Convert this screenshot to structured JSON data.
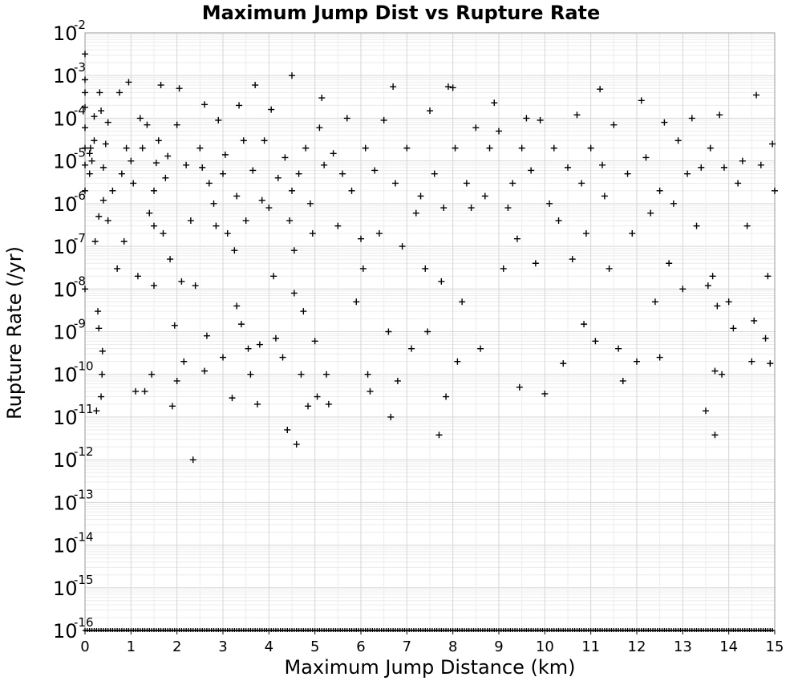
{
  "chart_data": {
    "type": "scatter",
    "title": "Maximum Jump Dist vs Rupture Rate",
    "xlabel": "Maximum Jump Distance (km)",
    "ylabel": "Rupture Rate (/yr)",
    "xlim": [
      0,
      15
    ],
    "ylim": [
      1e-16,
      0.01
    ],
    "yscale": "log",
    "grid": true,
    "marker": "plus",
    "marker_color": "#000000",
    "grid_color": "#dddddd",
    "x_ticks": [
      "0",
      "1",
      "2",
      "3",
      "4",
      "5",
      "6",
      "7",
      "8",
      "9",
      "10",
      "11",
      "12",
      "13",
      "14",
      "15"
    ],
    "y_ticks": [
      {
        "base": "10",
        "exp": "-2"
      },
      {
        "base": "10",
        "exp": "-3"
      },
      {
        "base": "10",
        "exp": "-4"
      },
      {
        "base": "10",
        "exp": "-5"
      },
      {
        "base": "10",
        "exp": "-6"
      },
      {
        "base": "10",
        "exp": "-7"
      },
      {
        "base": "10",
        "exp": "-8"
      },
      {
        "base": "10",
        "exp": "-9"
      },
      {
        "base": "10",
        "exp": "-10"
      },
      {
        "base": "10",
        "exp": "-11"
      },
      {
        "base": "10",
        "exp": "-12"
      },
      {
        "base": "10",
        "exp": "-13"
      },
      {
        "base": "10",
        "exp": "-14"
      },
      {
        "base": "10",
        "exp": "-15"
      },
      {
        "base": "10",
        "exp": "-16"
      }
    ],
    "points": [
      [
        0.0,
        0.0032
      ],
      [
        0.0,
        0.0008
      ],
      [
        0.0,
        0.0004
      ],
      [
        0.0,
        0.00018
      ],
      [
        0.0,
        6e-05
      ],
      [
        0.0,
        2e-05
      ],
      [
        0.0,
        8e-06
      ],
      [
        0.0,
        2e-06
      ],
      [
        0.0,
        1e-08
      ],
      [
        0.1,
        1.5e-05
      ],
      [
        0.1,
        5e-06
      ],
      [
        0.12,
        2e-05
      ],
      [
        0.15,
        1e-05
      ],
      [
        0.2,
        3e-05
      ],
      [
        0.2,
        0.00011
      ],
      [
        0.22,
        1.3e-07
      ],
      [
        0.25,
        1.4e-11
      ],
      [
        0.28,
        3e-09
      ],
      [
        0.3,
        1.2e-09
      ],
      [
        0.3,
        5e-07
      ],
      [
        0.32,
        0.0004
      ],
      [
        0.35,
        0.00015
      ],
      [
        0.35,
        3e-11
      ],
      [
        0.37,
        1e-10
      ],
      [
        0.38,
        3.5e-10
      ],
      [
        0.4,
        7e-06
      ],
      [
        0.4,
        1.2e-06
      ],
      [
        0.45,
        2.5e-05
      ],
      [
        0.5,
        8e-05
      ],
      [
        0.5,
        4e-07
      ],
      [
        0.6,
        2e-06
      ],
      [
        0.7,
        3e-08
      ],
      [
        0.75,
        0.0004
      ],
      [
        0.8,
        5e-06
      ],
      [
        0.85,
        1.3e-07
      ],
      [
        0.9,
        2e-05
      ],
      [
        0.95,
        0.0007
      ],
      [
        1.0,
        1e-05
      ],
      [
        1.05,
        3e-06
      ],
      [
        1.1,
        4e-11
      ],
      [
        1.15,
        2e-08
      ],
      [
        1.2,
        0.0001
      ],
      [
        1.25,
        2e-05
      ],
      [
        1.3,
        4e-11
      ],
      [
        1.35,
        7e-05
      ],
      [
        1.4,
        6e-07
      ],
      [
        1.45,
        1e-10
      ],
      [
        1.5,
        3e-07
      ],
      [
        1.5,
        1.2e-08
      ],
      [
        1.5,
        2e-06
      ],
      [
        1.55,
        9e-06
      ],
      [
        1.6,
        3e-05
      ],
      [
        1.65,
        0.0006
      ],
      [
        1.7,
        2e-07
      ],
      [
        1.75,
        4e-06
      ],
      [
        1.8,
        1.3e-05
      ],
      [
        1.85,
        5e-08
      ],
      [
        1.9,
        1.8e-11
      ],
      [
        1.95,
        1.4e-09
      ],
      [
        2.0,
        7e-05
      ],
      [
        2.0,
        7e-11
      ],
      [
        2.05,
        0.0005
      ],
      [
        2.1,
        1.5e-08
      ],
      [
        2.15,
        2e-10
      ],
      [
        2.2,
        8e-06
      ],
      [
        2.3,
        4e-07
      ],
      [
        2.35,
        1e-12
      ],
      [
        2.4,
        1.2e-08
      ],
      [
        2.5,
        2e-05
      ],
      [
        2.55,
        7e-06
      ],
      [
        2.6,
        0.00021
      ],
      [
        2.6,
        1.2e-10
      ],
      [
        2.65,
        8e-10
      ],
      [
        2.7,
        3e-06
      ],
      [
        2.8,
        1e-06
      ],
      [
        2.85,
        3e-07
      ],
      [
        2.9,
        9e-05
      ],
      [
        3.0,
        2.5e-10
      ],
      [
        3.0,
        5e-06
      ],
      [
        3.05,
        1.4e-05
      ],
      [
        3.1,
        2e-07
      ],
      [
        3.2,
        2.8e-11
      ],
      [
        3.25,
        8e-08
      ],
      [
        3.3,
        4e-09
      ],
      [
        3.3,
        1.5e-06
      ],
      [
        3.35,
        0.0002
      ],
      [
        3.4,
        1.5e-09
      ],
      [
        3.45,
        3e-05
      ],
      [
        3.5,
        4e-07
      ],
      [
        3.55,
        4e-10
      ],
      [
        3.6,
        1e-10
      ],
      [
        3.65,
        6e-06
      ],
      [
        3.7,
        0.0006
      ],
      [
        3.75,
        2e-11
      ],
      [
        3.8,
        5e-10
      ],
      [
        3.85,
        1.2e-06
      ],
      [
        3.9,
        3e-05
      ],
      [
        4.0,
        8e-07
      ],
      [
        4.05,
        0.00016
      ],
      [
        4.1,
        2e-08
      ],
      [
        4.15,
        7e-10
      ],
      [
        4.2,
        4e-06
      ],
      [
        4.3,
        2.5e-10
      ],
      [
        4.35,
        1.2e-05
      ],
      [
        4.4,
        5e-12
      ],
      [
        4.45,
        4e-07
      ],
      [
        4.5,
        0.001
      ],
      [
        4.5,
        2e-06
      ],
      [
        4.55,
        8e-09
      ],
      [
        4.55,
        8e-08
      ],
      [
        4.6,
        2.3e-12
      ],
      [
        4.65,
        5e-06
      ],
      [
        4.7,
        1e-10
      ],
      [
        4.75,
        3e-09
      ],
      [
        4.8,
        2e-05
      ],
      [
        4.85,
        1.8e-11
      ],
      [
        4.9,
        1e-06
      ],
      [
        4.95,
        2e-07
      ],
      [
        5.0,
        6e-10
      ],
      [
        5.05,
        3e-11
      ],
      [
        5.1,
        6e-05
      ],
      [
        5.15,
        0.0003
      ],
      [
        5.2,
        8e-06
      ],
      [
        5.25,
        1e-10
      ],
      [
        5.3,
        2e-11
      ],
      [
        5.4,
        1.5e-05
      ],
      [
        5.5,
        3e-07
      ],
      [
        5.6,
        5e-06
      ],
      [
        5.7,
        0.0001
      ],
      [
        5.8,
        2e-06
      ],
      [
        5.9,
        5e-09
      ],
      [
        6.0,
        1.5e-07
      ],
      [
        6.05,
        3e-08
      ],
      [
        6.1,
        2e-05
      ],
      [
        6.15,
        1e-10
      ],
      [
        6.2,
        4e-11
      ],
      [
        6.3,
        6e-06
      ],
      [
        6.4,
        2e-07
      ],
      [
        6.5,
        9e-05
      ],
      [
        6.6,
        1e-09
      ],
      [
        6.65,
        1e-11
      ],
      [
        6.7,
        0.00055
      ],
      [
        6.75,
        3e-06
      ],
      [
        6.8,
        7e-11
      ],
      [
        6.9,
        1e-07
      ],
      [
        7.0,
        2e-05
      ],
      [
        7.1,
        4e-10
      ],
      [
        7.2,
        6e-07
      ],
      [
        7.3,
        1.5e-06
      ],
      [
        7.4,
        3e-08
      ],
      [
        7.45,
        1e-09
      ],
      [
        7.5,
        0.00015
      ],
      [
        7.6,
        5e-06
      ],
      [
        7.7,
        3.8e-12
      ],
      [
        7.75,
        1.5e-08
      ],
      [
        7.8,
        8e-07
      ],
      [
        7.85,
        3e-11
      ],
      [
        7.9,
        0.00055
      ],
      [
        8.0,
        0.00052
      ],
      [
        8.05,
        2e-05
      ],
      [
        8.1,
        2e-10
      ],
      [
        8.2,
        5e-09
      ],
      [
        8.3,
        3e-06
      ],
      [
        8.4,
        8e-07
      ],
      [
        8.5,
        6e-05
      ],
      [
        8.6,
        4e-10
      ],
      [
        8.7,
        1.5e-06
      ],
      [
        8.8,
        2e-05
      ],
      [
        8.9,
        0.00023
      ],
      [
        9.0,
        5e-05
      ],
      [
        9.1,
        3e-08
      ],
      [
        9.2,
        8e-07
      ],
      [
        9.3,
        3e-06
      ],
      [
        9.4,
        1.5e-07
      ],
      [
        9.45,
        5e-11
      ],
      [
        9.5,
        2e-05
      ],
      [
        9.6,
        0.0001
      ],
      [
        9.7,
        6e-06
      ],
      [
        9.8,
        4e-08
      ],
      [
        9.9,
        9e-05
      ],
      [
        10.0,
        3.5e-11
      ],
      [
        10.1,
        1e-06
      ],
      [
        10.2,
        2e-05
      ],
      [
        10.3,
        4e-07
      ],
      [
        10.4,
        1.8e-10
      ],
      [
        10.5,
        7e-06
      ],
      [
        10.6,
        5e-08
      ],
      [
        10.7,
        0.00012
      ],
      [
        10.8,
        3e-06
      ],
      [
        10.85,
        1.5e-09
      ],
      [
        10.9,
        2e-07
      ],
      [
        11.0,
        2e-05
      ],
      [
        11.1,
        6e-10
      ],
      [
        11.2,
        0.00048
      ],
      [
        11.25,
        8e-06
      ],
      [
        11.3,
        1.5e-06
      ],
      [
        11.4,
        3e-08
      ],
      [
        11.5,
        7e-05
      ],
      [
        11.6,
        4e-10
      ],
      [
        11.7,
        7e-11
      ],
      [
        11.8,
        5e-06
      ],
      [
        11.9,
        2e-07
      ],
      [
        12.0,
        2e-10
      ],
      [
        12.1,
        0.00026
      ],
      [
        12.2,
        1.2e-05
      ],
      [
        12.3,
        6e-07
      ],
      [
        12.4,
        5e-09
      ],
      [
        12.5,
        2e-06
      ],
      [
        12.5,
        2.5e-10
      ],
      [
        12.6,
        8e-05
      ],
      [
        12.7,
        4e-08
      ],
      [
        12.8,
        1e-06
      ],
      [
        12.9,
        3e-05
      ],
      [
        13.0,
        1e-08
      ],
      [
        13.1,
        5e-06
      ],
      [
        13.2,
        0.0001
      ],
      [
        13.3,
        3e-07
      ],
      [
        13.4,
        7e-06
      ],
      [
        13.5,
        1.4e-11
      ],
      [
        13.55,
        1.2e-08
      ],
      [
        13.6,
        2e-05
      ],
      [
        13.65,
        2e-08
      ],
      [
        13.7,
        1.2e-10
      ],
      [
        13.7,
        3.8e-12
      ],
      [
        13.75,
        4e-09
      ],
      [
        13.8,
        0.00012
      ],
      [
        13.85,
        1e-10
      ],
      [
        13.9,
        7e-06
      ],
      [
        14.0,
        5e-09
      ],
      [
        14.1,
        1.2e-09
      ],
      [
        14.2,
        3e-06
      ],
      [
        14.3,
        1e-05
      ],
      [
        14.4,
        3e-07
      ],
      [
        14.5,
        2e-10
      ],
      [
        14.55,
        1.8e-09
      ],
      [
        14.6,
        0.00035
      ],
      [
        14.7,
        8e-06
      ],
      [
        14.8,
        7e-10
      ],
      [
        14.85,
        2e-08
      ],
      [
        14.9,
        1.8e-10
      ],
      [
        14.95,
        2.5e-05
      ],
      [
        15.0,
        2e-06
      ]
    ],
    "floor_band": {
      "y": 1e-16,
      "note": "dense row of markers spanning the full x range"
    }
  }
}
